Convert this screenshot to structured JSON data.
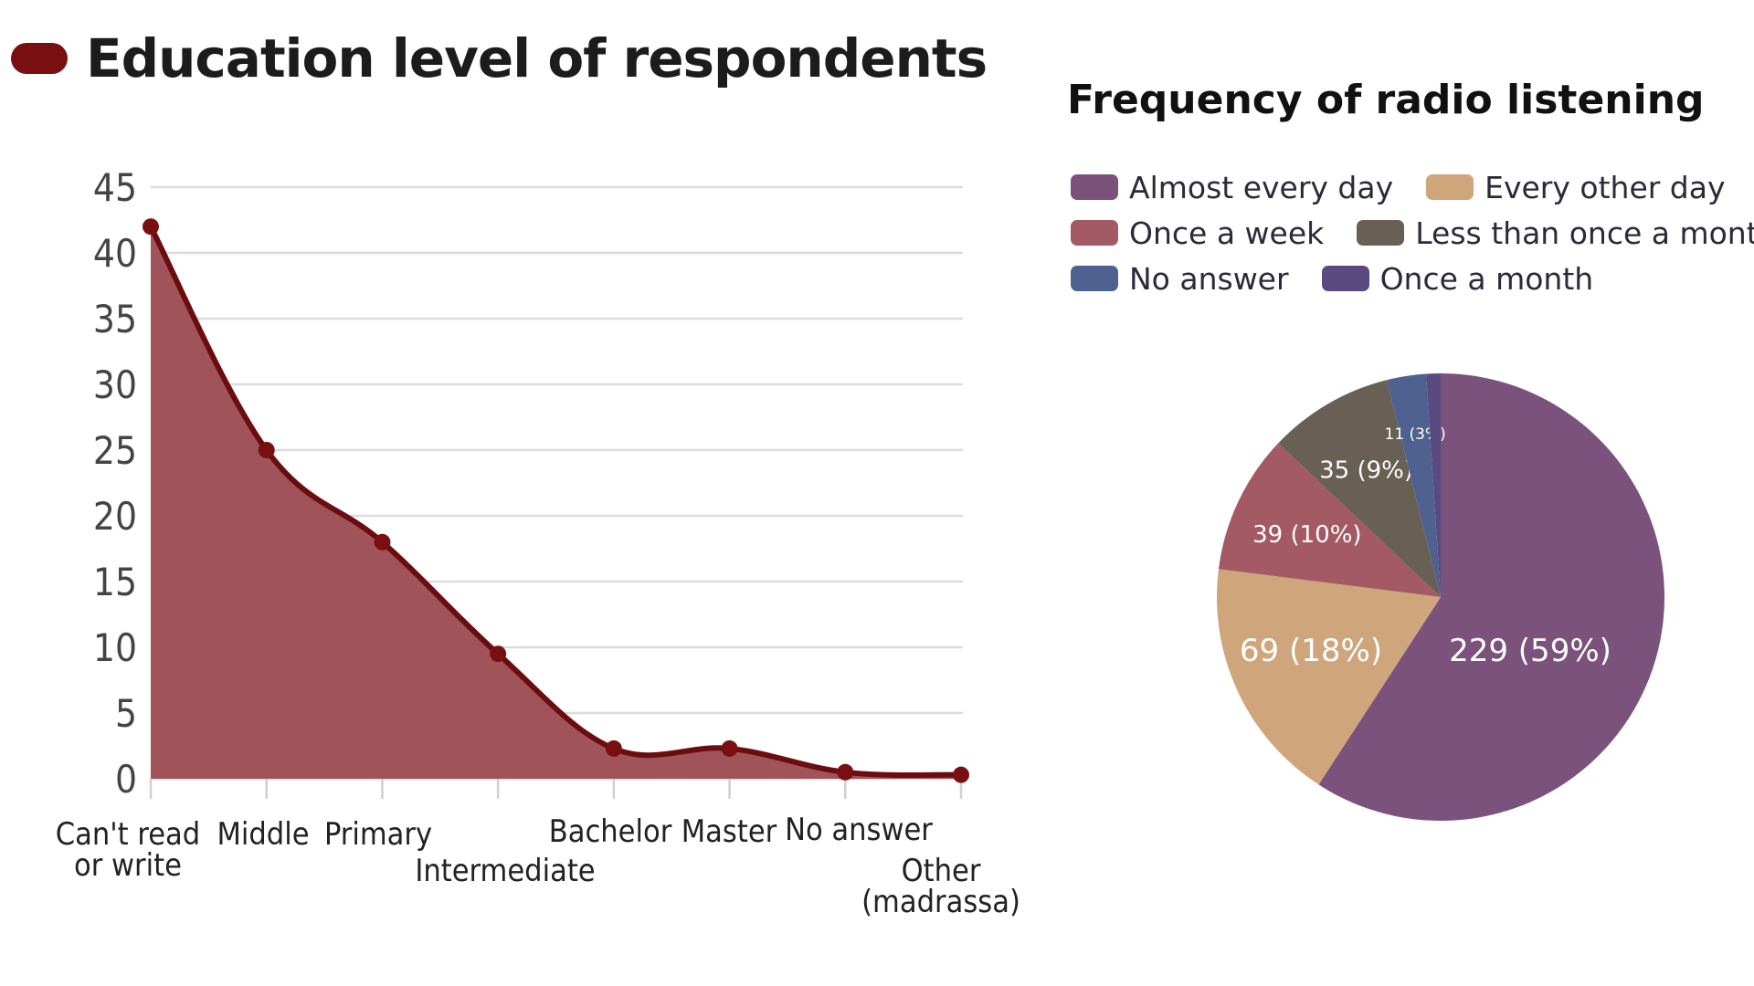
{
  "colors": {
    "area_fill": "#a0545a",
    "area_line": "#6b0d0f",
    "marker": "#7a0f12",
    "title_pill": "#7a0f12",
    "grid": "#dcdcdc",
    "axis_text": "#444444"
  },
  "chart_data": [
    {
      "type": "area",
      "title": "Education level of respondents",
      "categories": [
        [
          "Can't read",
          "or write"
        ],
        [
          "Middle"
        ],
        [
          "Primary"
        ],
        [
          "Intermediate"
        ],
        [
          "Bachelor"
        ],
        [
          "Master"
        ],
        [
          "No answer"
        ],
        [
          "Other",
          "(madrassa)"
        ]
      ],
      "values": [
        42,
        25,
        18,
        9.5,
        2.3,
        2.3,
        0.5,
        0.3
      ],
      "yticks": [
        0,
        5,
        10,
        15,
        20,
        25,
        30,
        35,
        40,
        45
      ],
      "ylim": [
        0,
        45
      ],
      "grid": true
    },
    {
      "type": "pie",
      "title": "Frequency of radio listening",
      "legend_position": "top",
      "legend": [
        [
          "Almost every day",
          "Every other day"
        ],
        [
          "Once a week",
          "Less than once a month"
        ],
        [
          "No answer",
          "Once a month"
        ]
      ],
      "slices": [
        {
          "name": "Almost every day",
          "value": 229,
          "label": "229 (59%)",
          "color": "#7a527c"
        },
        {
          "name": "Every other day",
          "value": 69,
          "label": "69 (18%)",
          "color": "#cfa57c"
        },
        {
          "name": "Once a week",
          "value": 39,
          "label": "39 (10%)",
          "color": "#a35a64"
        },
        {
          "name": "Less than once a month",
          "value": 35,
          "label": "35 (9%)",
          "color": "#686054"
        },
        {
          "name": "No answer",
          "value": 11,
          "label": "11 (3%)",
          "color": "#4e6190"
        },
        {
          "name": "Once a month",
          "value": 4,
          "label": "",
          "color": "#5a4a80"
        }
      ]
    }
  ]
}
